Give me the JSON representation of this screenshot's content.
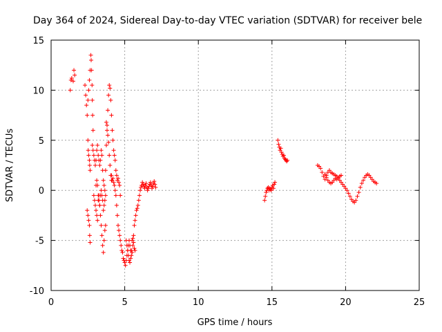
{
  "chart_data": {
    "type": "scatter",
    "title": "Day 364 of 2024, Sidereal Day-to-day VTEC variation (SDTVAR) for receiver bele",
    "xlabel": "GPS time / hours",
    "ylabel": "SDTVAR / TECUs",
    "xlim": [
      0,
      25
    ],
    "ylim": [
      -10,
      15
    ],
    "xticks": [
      0,
      5,
      10,
      15,
      20,
      25
    ],
    "yticks": [
      -10,
      -5,
      0,
      5,
      10,
      15
    ],
    "grid": true,
    "marker": "+",
    "series": [
      {
        "name": "SDTVAR",
        "color": "#ff0000",
        "x": [
          1.3,
          1.35,
          1.4,
          1.5,
          1.55,
          1.6,
          2.3,
          2.35,
          2.4,
          2.45,
          2.5,
          2.55,
          2.6,
          2.65,
          2.7,
          2.72,
          2.75,
          2.78,
          2.8,
          2.82,
          2.85,
          2.5,
          2.52,
          2.55,
          2.6,
          2.62,
          2.65,
          2.45,
          2.5,
          2.55,
          2.6,
          2.62,
          2.65,
          2.8,
          2.85,
          2.9,
          2.95,
          3.0,
          3.05,
          3.1,
          3.15,
          3.2,
          3.25,
          3.3,
          3.35,
          3.4,
          3.45,
          3.5,
          3.55,
          3.6,
          3.65,
          3.7,
          2.9,
          2.95,
          3.0,
          3.05,
          3.1,
          3.15,
          3.2,
          3.25,
          3.3,
          3.35,
          3.4,
          3.45,
          3.5,
          3.55,
          3.6,
          3.65,
          3.7,
          3.05,
          3.1,
          3.15,
          3.2,
          3.25,
          3.3,
          3.35,
          3.4,
          3.45,
          3.5,
          3.55,
          3.6,
          3.65,
          3.7,
          3.75,
          3.8,
          3.85,
          3.9,
          3.95,
          4.0,
          4.05,
          4.1,
          4.15,
          4.2,
          4.25,
          4.3,
          4.35,
          4.4,
          4.45,
          4.5,
          4.55,
          4.6,
          4.65,
          4.7,
          3.75,
          3.8,
          3.85,
          3.9,
          3.95,
          4.0,
          4.05,
          4.1,
          4.1,
          4.15,
          4.2,
          4.25,
          4.3,
          4.35,
          4.4,
          4.45,
          4.5,
          4.55,
          4.6,
          4.65,
          4.7,
          4.75,
          4.8,
          4.85,
          4.9,
          4.95,
          5.0,
          5.05,
          5.1,
          5.15,
          5.2,
          5.25,
          5.3,
          5.35,
          5.4,
          5.45,
          5.5,
          5.55,
          5.6,
          5.65,
          5.7,
          5.75,
          5.8,
          5.85,
          5.9,
          5.95,
          6.0,
          6.05,
          6.1,
          6.15,
          6.2,
          6.25,
          6.3,
          6.35,
          6.4,
          6.45,
          6.5,
          6.55,
          6.6,
          6.65,
          6.7,
          6.75,
          6.8,
          6.85,
          6.9,
          6.95,
          7.0,
          7.05,
          7.1,
          5.1,
          5.15,
          5.2,
          5.25,
          5.3,
          5.35,
          5.4,
          5.45,
          5.5,
          5.55,
          5.6,
          5.65,
          5.7,
          14.5,
          14.55,
          14.6,
          14.65,
          14.7,
          14.75,
          14.8,
          14.85,
          14.9,
          14.95,
          15.0,
          15.05,
          15.1,
          15.15,
          15.2,
          15.4,
          15.45,
          15.5,
          15.55,
          15.6,
          15.65,
          15.7,
          15.75,
          15.8,
          15.85,
          15.9,
          15.95,
          16.0,
          16.05,
          18.1,
          18.2,
          18.3,
          18.4,
          18.5,
          18.6,
          18.7,
          18.8,
          18.9,
          19.0,
          19.1,
          19.2,
          19.3,
          19.4,
          19.5,
          19.6,
          19.7,
          19.8,
          19.9,
          20.0,
          20.1,
          20.2,
          20.3,
          20.4,
          20.5,
          20.6,
          20.7,
          20.8,
          20.9,
          21.0,
          21.1,
          21.2,
          21.3,
          21.4,
          21.5,
          21.6,
          21.7,
          21.8,
          21.9,
          22.0,
          22.1,
          18.6,
          18.7,
          18.8,
          18.9,
          19.0,
          19.1,
          19.2,
          19.3,
          19.4,
          19.5,
          19.6,
          19.7
        ],
        "y": [
          10.0,
          11.0,
          11.2,
          10.9,
          12.0,
          11.5,
          10.5,
          9.5,
          8.5,
          7.5,
          9.0,
          10.0,
          11.0,
          12.0,
          13.5,
          13.0,
          12.0,
          10.5,
          9.0,
          7.5,
          6.0,
          5.0,
          4.0,
          3.5,
          3.0,
          2.5,
          2.0,
          -2.0,
          -2.5,
          -3.0,
          -3.5,
          -4.5,
          -5.2,
          4.5,
          4.0,
          3.5,
          3.0,
          2.5,
          3.0,
          4.0,
          4.5,
          3.5,
          3.0,
          2.5,
          3.0,
          4.0,
          3.5,
          2.0,
          1.0,
          0.5,
          0.0,
          -0.5,
          -0.5,
          -1.0,
          -1.5,
          -2.0,
          -2.5,
          -3.0,
          -1.0,
          -0.5,
          -1.5,
          -2.5,
          -3.5,
          -4.5,
          -5.5,
          -6.2,
          -5.0,
          -4.0,
          -3.5,
          0.5,
          1.0,
          0.5,
          -0.5,
          -1.0,
          -1.5,
          -0.5,
          0.0,
          -0.5,
          -1.0,
          -2.0,
          -1.5,
          -1.0,
          2.0,
          4.5,
          6.5,
          8.0,
          9.5,
          10.5,
          10.2,
          9.0,
          7.5,
          6.0,
          5.0,
          4.0,
          3.5,
          3.0,
          2.0,
          1.5,
          1.0,
          1.2,
          0.8,
          0.5,
          -0.5,
          6.8,
          6.0,
          5.5,
          4.8,
          3.5,
          2.5,
          1.5,
          1.0,
          1.5,
          1.0,
          1.2,
          0.8,
          0.5,
          0.0,
          -0.5,
          -1.5,
          -2.5,
          -3.5,
          -4.0,
          -4.5,
          -5.0,
          -5.5,
          -6.0,
          -6.2,
          -6.8,
          -7.0,
          -7.2,
          -7.5,
          -7.0,
          -6.5,
          -6.0,
          -5.5,
          -5.0,
          -5.5,
          -6.0,
          -6.5,
          -6.2,
          -5.5,
          -4.5,
          -3.5,
          -3.0,
          -2.5,
          -2.0,
          -1.8,
          -1.5,
          -1.0,
          -0.5,
          0.0,
          0.3,
          0.5,
          0.8,
          0.6,
          0.4,
          0.2,
          0.5,
          0.7,
          0.3,
          0.0,
          0.2,
          0.4,
          0.6,
          0.8,
          0.5,
          0.2,
          0.4,
          0.7,
          0.9,
          0.6,
          0.3,
          -5.0,
          -5.5,
          -6.0,
          -6.5,
          -7.0,
          -7.2,
          -6.8,
          -6.0,
          -5.0,
          -4.8,
          -5.2,
          -5.8,
          -6.0,
          -1.0,
          -0.6,
          -0.2,
          0.0,
          0.2,
          0.3,
          0.0,
          0.2,
          0.1,
          0.0,
          0.3,
          0.5,
          0.2,
          0.6,
          0.8,
          5.0,
          4.6,
          4.3,
          4.0,
          4.2,
          3.8,
          3.6,
          3.4,
          3.5,
          3.2,
          3.1,
          3.0,
          2.9,
          3.0,
          2.5,
          2.4,
          2.2,
          1.8,
          1.4,
          1.1,
          1.5,
          1.8,
          2.0,
          1.8,
          1.7,
          1.6,
          1.5,
          1.4,
          1.2,
          1.0,
          0.8,
          0.6,
          0.4,
          0.2,
          0.0,
          -0.3,
          -0.6,
          -0.9,
          -1.1,
          -1.2,
          -1.0,
          -0.6,
          -0.2,
          0.3,
          0.7,
          1.0,
          1.3,
          1.5,
          1.6,
          1.5,
          1.3,
          1.1,
          0.9,
          0.8,
          0.7,
          1.6,
          1.3,
          1.0,
          0.8,
          0.7,
          0.8,
          1.0,
          1.2,
          1.1,
          1.3,
          1.4,
          1.5
        ]
      }
    ]
  }
}
